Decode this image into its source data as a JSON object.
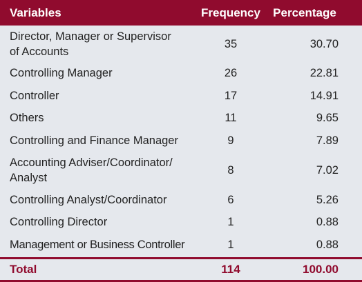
{
  "header": {
    "variables": "Variables",
    "frequency": "Frequency",
    "percentage": "Percentage"
  },
  "rows": [
    {
      "label": "Director, Manager or Supervisor of Accounts",
      "frequency": "35",
      "percentage": "30.70"
    },
    {
      "label": "Controlling Manager",
      "frequency": "26",
      "percentage": "22.81"
    },
    {
      "label": "Controller",
      "frequency": "17",
      "percentage": "14.91"
    },
    {
      "label": "Others",
      "frequency": "11",
      "percentage": "9.65"
    },
    {
      "label": "Controlling and Finance Manager",
      "frequency": "9",
      "percentage": "7.89"
    },
    {
      "label": "Accounting Adviser/Coordinator/ Analyst",
      "frequency": "8",
      "percentage": "7.02"
    },
    {
      "label": "Controlling Analyst/Coordinator",
      "frequency": "6",
      "percentage": "5.26"
    },
    {
      "label": "Controlling Director",
      "frequency": "1",
      "percentage": "0.88"
    },
    {
      "label": "Management or Business Controller",
      "frequency": "1",
      "percentage": "0.88"
    }
  ],
  "total": {
    "label": "Total",
    "frequency": "114",
    "percentage": "100.00"
  },
  "colors": {
    "accent": "#900b2e",
    "background": "#e5e8ed"
  }
}
